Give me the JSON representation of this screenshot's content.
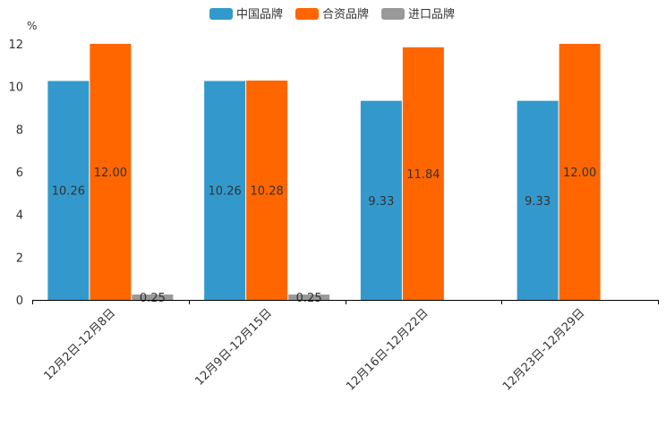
{
  "chart_data": {
    "type": "bar",
    "title": "",
    "ylabel": "%",
    "xlabel": "",
    "ylim": [
      0,
      12
    ],
    "yticks": [
      0,
      2,
      4,
      6,
      8,
      10,
      12
    ],
    "categories": [
      "12月2日-12月8日",
      "12月9日-12月15日",
      "12月16日-12月22日",
      "12月23日-12月29日"
    ],
    "series": [
      {
        "name": "中国品牌",
        "color": "#3399cc",
        "values": [
          10.26,
          10.26,
          9.33,
          9.33
        ],
        "labels": [
          "10.26",
          "10.26",
          "9.33",
          "9.33"
        ]
      },
      {
        "name": "合资品牌",
        "color": "#ff6600",
        "values": [
          12.0,
          10.28,
          11.84,
          12.0
        ],
        "labels": [
          "12.00",
          "10.28",
          "11.84",
          "12.00"
        ]
      },
      {
        "name": "进口品牌",
        "color": "#999999",
        "values": [
          0.25,
          0.25,
          null,
          null
        ],
        "labels": [
          "0.25",
          "0.25",
          null,
          null
        ]
      }
    ],
    "legend_position": "top-center"
  }
}
